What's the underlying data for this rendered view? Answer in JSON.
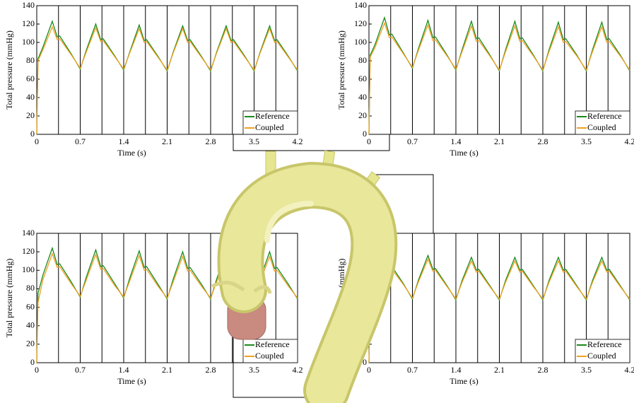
{
  "chart_data": [
    {
      "type": "line",
      "xlabel": "Time (s)",
      "ylabel": "Total pressure (mmHg)",
      "xlim": [
        0,
        4.2
      ],
      "ylim": [
        0,
        140
      ],
      "xticks": [
        0,
        0.7,
        1.4,
        2.1,
        2.8,
        3.5,
        4.2
      ],
      "yticks": [
        0,
        20,
        40,
        60,
        80,
        100,
        120,
        140
      ],
      "legend": "lower right",
      "vlines": [
        0.35,
        0.7,
        1.05,
        1.4,
        1.75,
        2.1,
        2.45,
        2.8,
        3.15,
        3.5,
        3.85
      ],
      "x": [
        0,
        0.02,
        0.1,
        0.25,
        0.33,
        0.37,
        0.55,
        0.7,
        0.8,
        0.95,
        1.03,
        1.07,
        1.25,
        1.4,
        1.5,
        1.65,
        1.73,
        1.77,
        1.95,
        2.1,
        2.2,
        2.35,
        2.43,
        2.47,
        2.65,
        2.8,
        2.9,
        3.05,
        3.13,
        3.17,
        3.35,
        3.5,
        3.6,
        3.75,
        3.83,
        3.87,
        4.05,
        4.2
      ],
      "series": [
        {
          "name": "Reference",
          "color": "#1a8a1a",
          "values": [
            0,
            82,
            95,
            123,
            106,
            107,
            88,
            71,
            92,
            120,
            103,
            104,
            86,
            70,
            90,
            119,
            102,
            103,
            85,
            69,
            90,
            118,
            102,
            103,
            85,
            69,
            90,
            118,
            102,
            103,
            85,
            69,
            90,
            118,
            102,
            103,
            85,
            69
          ]
        },
        {
          "name": "Coupled",
          "color": "#f0a020",
          "values": [
            0,
            80,
            92,
            117,
            103,
            104,
            87,
            72,
            90,
            116,
            101,
            102,
            85,
            71,
            89,
            115,
            100,
            101,
            84,
            70,
            89,
            115,
            100,
            101,
            84,
            70,
            89,
            115,
            100,
            101,
            84,
            70,
            89,
            115,
            100,
            101,
            84,
            70
          ]
        }
      ]
    },
    {
      "type": "line",
      "xlabel": "Time (s)",
      "ylabel": "Total pressure (mmHg)",
      "xlim": [
        0,
        4.2
      ],
      "ylim": [
        0,
        140
      ],
      "xticks": [
        0,
        0.7,
        1.4,
        2.1,
        2.8,
        3.5,
        4.2
      ],
      "yticks": [
        0,
        20,
        40,
        60,
        80,
        100,
        120,
        140
      ],
      "legend": "lower right",
      "vlines": [
        0.35,
        0.7,
        1.05,
        1.4,
        1.75,
        2.1,
        2.45,
        2.8,
        3.15,
        3.5,
        3.85
      ],
      "x": [
        0,
        0.02,
        0.1,
        0.25,
        0.33,
        0.37,
        0.55,
        0.7,
        0.8,
        0.95,
        1.03,
        1.07,
        1.25,
        1.4,
        1.5,
        1.65,
        1.73,
        1.77,
        1.95,
        2.1,
        2.2,
        2.35,
        2.43,
        2.47,
        2.65,
        2.8,
        2.9,
        3.05,
        3.13,
        3.17,
        3.35,
        3.5,
        3.6,
        3.75,
        3.83,
        3.87,
        4.05,
        4.2
      ],
      "series": [
        {
          "name": "Reference",
          "color": "#1a8a1a",
          "values": [
            0,
            86,
            98,
            127,
            108,
            109,
            89,
            72,
            94,
            124,
            105,
            106,
            87,
            70,
            92,
            123,
            104,
            105,
            86,
            69,
            92,
            123,
            104,
            105,
            86,
            69,
            92,
            122,
            103,
            104,
            86,
            69,
            92,
            122,
            103,
            104,
            86,
            69
          ]
        },
        {
          "name": "Coupled",
          "color": "#f0a020",
          "values": [
            0,
            84,
            95,
            121,
            105,
            106,
            88,
            73,
            92,
            119,
            102,
            103,
            86,
            71,
            90,
            118,
            101,
            102,
            85,
            70,
            90,
            118,
            101,
            102,
            85,
            70,
            90,
            117,
            100,
            101,
            85,
            70,
            90,
            117,
            100,
            101,
            85,
            70
          ]
        }
      ]
    },
    {
      "type": "line",
      "xlabel": "Time (s)",
      "ylabel": "Total pressure (mmHg)",
      "xlim": [
        0,
        4.2
      ],
      "ylim": [
        0,
        140
      ],
      "xticks": [
        0,
        0.7,
        1.4,
        2.1,
        2.8,
        3.5,
        4.2
      ],
      "yticks": [
        0,
        20,
        40,
        60,
        80,
        100,
        120,
        140
      ],
      "legend": "lower right",
      "vlines": [
        0.35,
        0.7,
        1.05,
        1.4,
        1.75,
        2.1,
        2.45,
        2.8,
        3.15,
        3.5,
        3.85
      ],
      "x": [
        0,
        0.02,
        0.1,
        0.25,
        0.33,
        0.37,
        0.55,
        0.7,
        0.8,
        0.95,
        1.03,
        1.07,
        1.25,
        1.4,
        1.5,
        1.65,
        1.73,
        1.77,
        1.95,
        2.1,
        2.2,
        2.35,
        2.43,
        2.47,
        2.65,
        2.8,
        2.9,
        3.05,
        3.13,
        3.17,
        3.35,
        3.5,
        3.6,
        3.75,
        3.83,
        3.87,
        4.05,
        4.2
      ],
      "series": [
        {
          "name": "Reference",
          "color": "#1a8a1a",
          "values": [
            0,
            75,
            95,
            124,
            106,
            107,
            88,
            71,
            93,
            122,
            104,
            105,
            86,
            70,
            92,
            121,
            103,
            104,
            85,
            69,
            91,
            120,
            102,
            103,
            85,
            69,
            91,
            120,
            102,
            103,
            85,
            69,
            91,
            120,
            102,
            103,
            85,
            69
          ]
        },
        {
          "name": "Coupled",
          "color": "#f0a020",
          "values": [
            0,
            65,
            90,
            118,
            103,
            104,
            86,
            72,
            90,
            117,
            101,
            102,
            84,
            71,
            89,
            116,
            100,
            101,
            83,
            70,
            88,
            115,
            99,
            100,
            83,
            70,
            88,
            115,
            99,
            100,
            83,
            70,
            88,
            115,
            99,
            100,
            83,
            70
          ]
        }
      ]
    },
    {
      "type": "line",
      "xlabel": "Time (s)",
      "ylabel": "Total pressure (mmHg)",
      "xlim": [
        0,
        4.2
      ],
      "ylim": [
        0,
        140
      ],
      "xticks": [
        0,
        0.7,
        1.4,
        2.1,
        2.8,
        3.5,
        4.2
      ],
      "yticks": [
        0,
        20,
        40,
        60,
        80,
        100,
        120,
        140
      ],
      "legend": "lower right",
      "vlines": [
        0.35,
        0.7,
        1.05,
        1.4,
        1.75,
        2.1,
        2.45,
        2.8,
        3.15,
        3.5,
        3.85
      ],
      "x": [
        0,
        0.02,
        0.1,
        0.25,
        0.33,
        0.37,
        0.55,
        0.7,
        0.8,
        0.95,
        1.03,
        1.07,
        1.25,
        1.4,
        1.5,
        1.65,
        1.73,
        1.77,
        1.95,
        2.1,
        2.2,
        2.35,
        2.43,
        2.47,
        2.65,
        2.8,
        2.9,
        3.05,
        3.13,
        3.17,
        3.35,
        3.5,
        3.6,
        3.75,
        3.83,
        3.87,
        4.05,
        4.2
      ],
      "series": [
        {
          "name": "Reference",
          "color": "#1a8a1a",
          "values": [
            0,
            70,
            92,
            118,
            103,
            104,
            86,
            69,
            90,
            116,
            101,
            102,
            84,
            68,
            89,
            114,
            100,
            101,
            83,
            68,
            89,
            114,
            100,
            101,
            83,
            68,
            89,
            114,
            100,
            101,
            83,
            68,
            89,
            114,
            100,
            101,
            83,
            68
          ]
        },
        {
          "name": "Coupled",
          "color": "#f0a020",
          "values": [
            0,
            62,
            88,
            114,
            100,
            101,
            85,
            70,
            88,
            112,
            99,
            100,
            83,
            69,
            87,
            110,
            98,
            99,
            82,
            69,
            87,
            110,
            98,
            99,
            82,
            69,
            87,
            110,
            98,
            99,
            82,
            69,
            87,
            110,
            98,
            99,
            82,
            69
          ]
        }
      ]
    }
  ]
}
